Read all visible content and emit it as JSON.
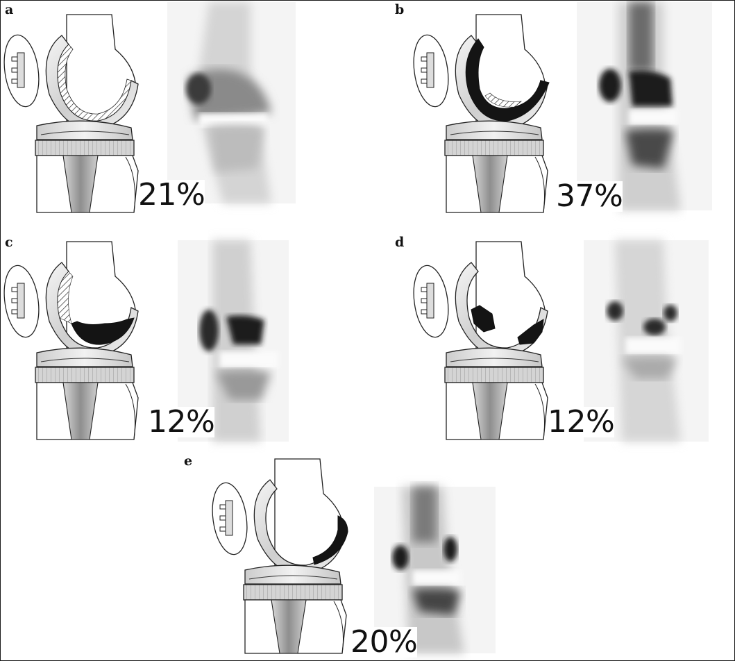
{
  "panels": [
    {
      "letter": "a",
      "percent": "21%",
      "defect": "hatched-interface"
    },
    {
      "letter": "b",
      "percent": "37%",
      "defect": "large-femoral-component-uptake"
    },
    {
      "letter": "c",
      "percent": "12%",
      "defect": "inferior-condyle-uptake"
    },
    {
      "letter": "d",
      "percent": "12%",
      "defect": "anterior-posterior-focal-uptake"
    },
    {
      "letter": "e",
      "percent": "20%",
      "defect": "posterior-condyle-uptake"
    }
  ],
  "colors": {
    "ink": "#111111",
    "uptake": "#1a1a1a",
    "metal_light": "#e8e8e8",
    "metal_mid": "#bdbdbd",
    "stem": "#9a9a9a",
    "scan_bg": "#f2f2f2"
  }
}
